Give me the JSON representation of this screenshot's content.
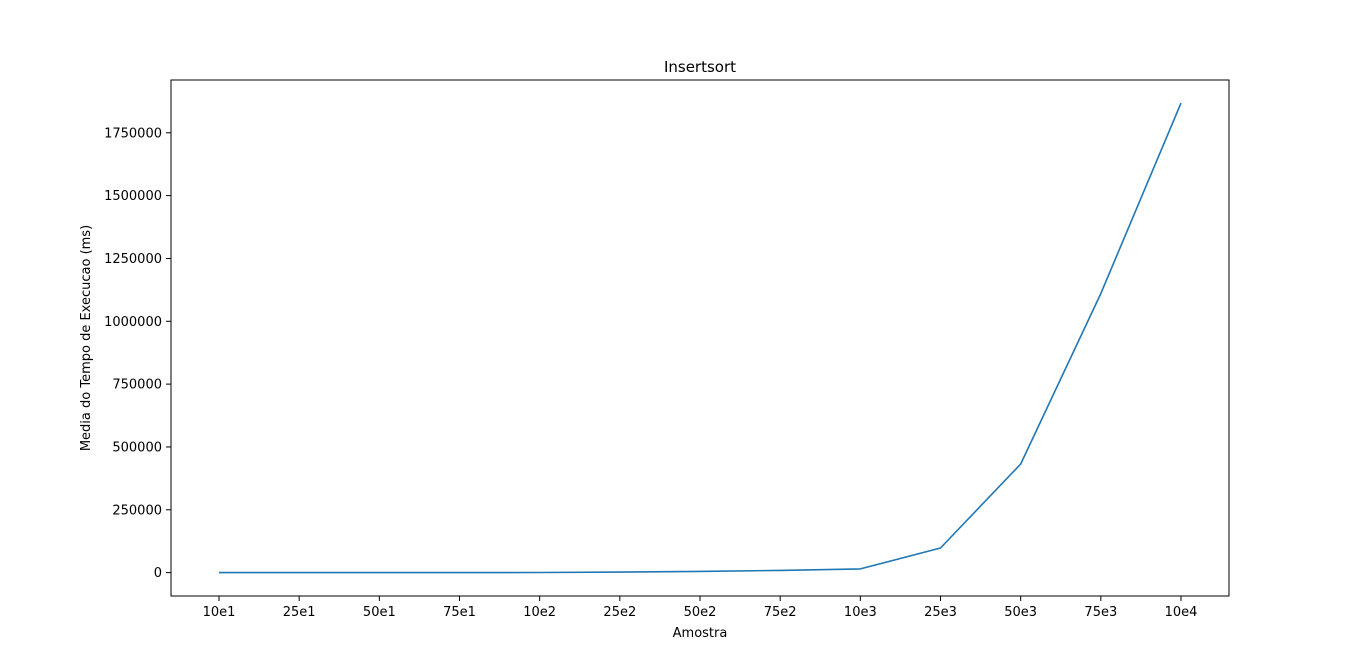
{
  "chart_data": {
    "type": "line",
    "title": "Insertsort",
    "xlabel": "Amostra",
    "ylabel": "Media do Tempo de Execucao (ms)",
    "categories": [
      "10e1",
      "25e1",
      "50e1",
      "75e1",
      "10e2",
      "25e2",
      "50e2",
      "75e2",
      "10e3",
      "25e3",
      "50e3",
      "75e3",
      "10e4"
    ],
    "series": [
      {
        "values": [
          0,
          0,
          0,
          100,
          500,
          2000,
          5000,
          9000,
          15000,
          98000,
          432000,
          1110000,
          1868000
        ]
      }
    ],
    "ylim": [
      -93000,
      1960000
    ],
    "yticks": [
      0,
      250000,
      500000,
      750000,
      1000000,
      1250000,
      1500000,
      1750000
    ],
    "ytick_labels": [
      "0",
      "250000",
      "500000",
      "750000",
      "1000000",
      "1250000",
      "1500000",
      "1750000"
    ],
    "grid": false,
    "line_color": "#1f77b4"
  }
}
